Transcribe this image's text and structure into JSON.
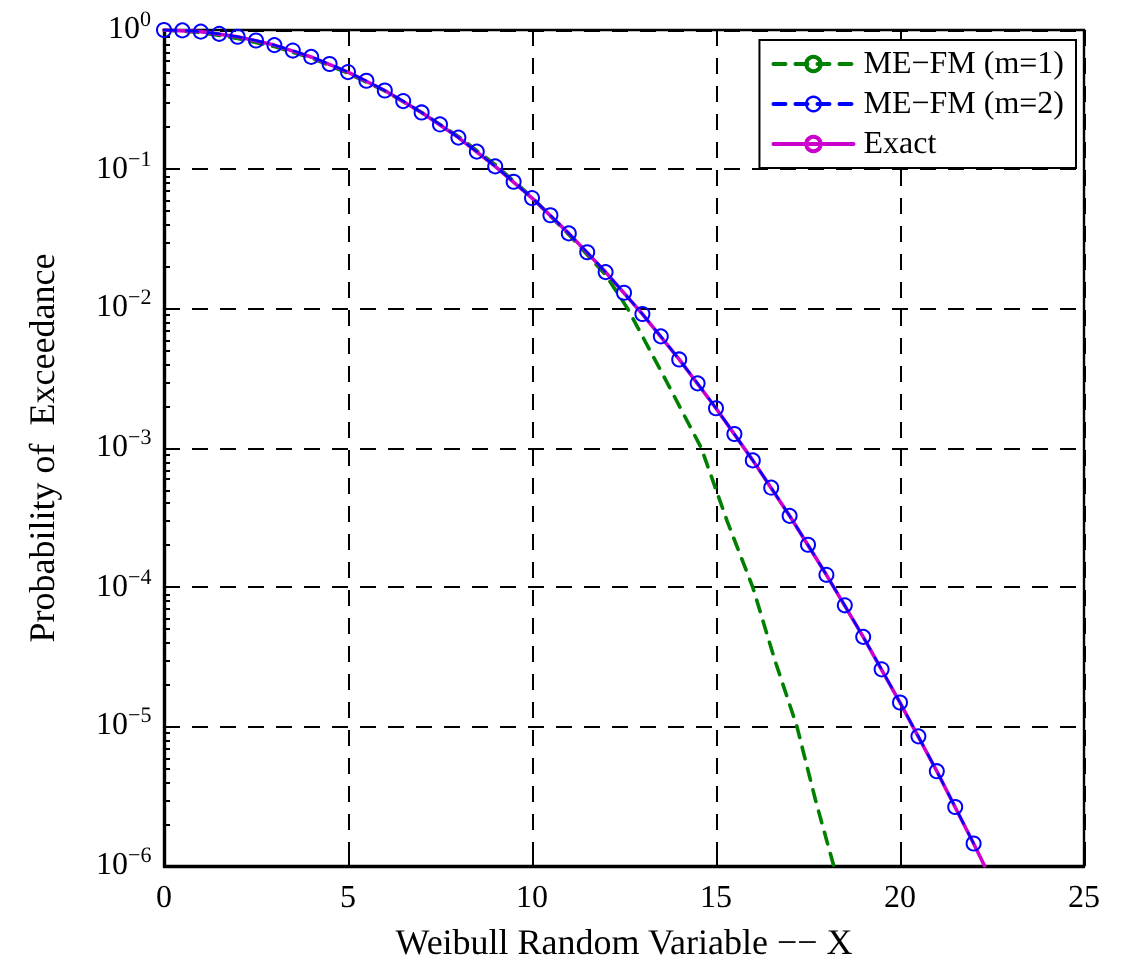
{
  "chart_data": {
    "type": "line",
    "xlabel": "Weibull Random Variable −− X",
    "ylabel": "Probability of  Exceedance",
    "log": "y",
    "grid": true,
    "legend": "top right",
    "xlim": [
      0,
      25
    ],
    "xticks": [
      0,
      5,
      10,
      15,
      20,
      25
    ],
    "ylim": [
      1e-06,
      1
    ],
    "yticks": [
      {
        "value": 1,
        "label": "10$^{0}$"
      },
      {
        "value": 0.1,
        "label": "10$^{−1}$"
      },
      {
        "value": 0.01,
        "label": "10$^{−2}$"
      },
      {
        "value": 0.001,
        "label": "10$^{−3}$"
      },
      {
        "value": 0.0001,
        "label": "10$^{−4}$"
      },
      {
        "value": 1e-05,
        "label": "10$^{−5}$"
      },
      {
        "value": 1e-06,
        "label": "10$^{−6}$"
      }
    ],
    "series": [
      {
        "name": "ME−FM (m=1)",
        "color": "#008000",
        "marker": "none",
        "line_style": "dashed",
        "x": [
          0,
          1,
          2,
          3,
          4,
          5,
          6,
          7,
          8,
          9,
          10,
          11,
          12,
          12.6,
          13.6,
          14.6,
          15.3,
          16,
          16.6,
          17.2,
          17.7,
          18.2
        ],
        "values": [
          1,
          0.96,
          0.87,
          0.76,
          0.63,
          0.49,
          0.365,
          0.256,
          0.172,
          0.108,
          0.063,
          0.034,
          0.0175,
          0.01,
          0.0032,
          0.001,
          0.0003,
          0.0001,
          3e-05,
          1e-05,
          3e-06,
          1e-06
        ]
      },
      {
        "name": "ME−FM (m=2)",
        "color": "#0000ff",
        "marker": "circle",
        "line_style": "dashed",
        "x": [
          0,
          0.5,
          1,
          1.5,
          2,
          2.5,
          3,
          3.5,
          4,
          4.5,
          5,
          5.5,
          6,
          6.5,
          7,
          7.5,
          8,
          8.5,
          9,
          9.5,
          10,
          10.5,
          11,
          11.5,
          12,
          12.5,
          13,
          13.5,
          14,
          14.5,
          15,
          15.5,
          16,
          16.5,
          17,
          17.5,
          18,
          18.5,
          19,
          19.5,
          20,
          20.5,
          21,
          21.5,
          22
        ],
        "values": [
          1,
          0.993,
          0.973,
          0.939,
          0.895,
          0.841,
          0.779,
          0.712,
          0.641,
          0.57,
          0.499,
          0.432,
          0.368,
          0.309,
          0.256,
          0.21,
          0.169,
          0.134,
          0.105,
          0.0815,
          0.0622,
          0.0468,
          0.0347,
          0.0254,
          0.0183,
          0.013,
          0.00915,
          0.00633,
          0.00432,
          0.00291,
          0.00193,
          0.00126,
          0.000815,
          0.000519,
          0.000326,
          0.000202,
          0.000123,
          7.43e-05,
          4.41e-05,
          2.58e-05,
          1.49e-05,
          8.52e-06,
          4.79e-06,
          2.65e-06,
          1.45e-06
        ]
      },
      {
        "name": "Exact",
        "color": "#cc00cc",
        "marker": "none",
        "line_style": "solid",
        "x": [
          0,
          1,
          2,
          3,
          4,
          5,
          6,
          7,
          8,
          9,
          10,
          11,
          12,
          13,
          14,
          15,
          16,
          17,
          18,
          19,
          20,
          21,
          22,
          22.3
        ],
        "values": [
          1,
          0.973,
          0.895,
          0.779,
          0.641,
          0.499,
          0.368,
          0.256,
          0.169,
          0.105,
          0.0622,
          0.0347,
          0.0183,
          0.00915,
          0.00432,
          0.00193,
          0.000815,
          0.000326,
          0.000123,
          4.41e-05,
          1.49e-05,
          4.79e-06,
          1.45e-06,
          1e-06
        ]
      }
    ]
  }
}
